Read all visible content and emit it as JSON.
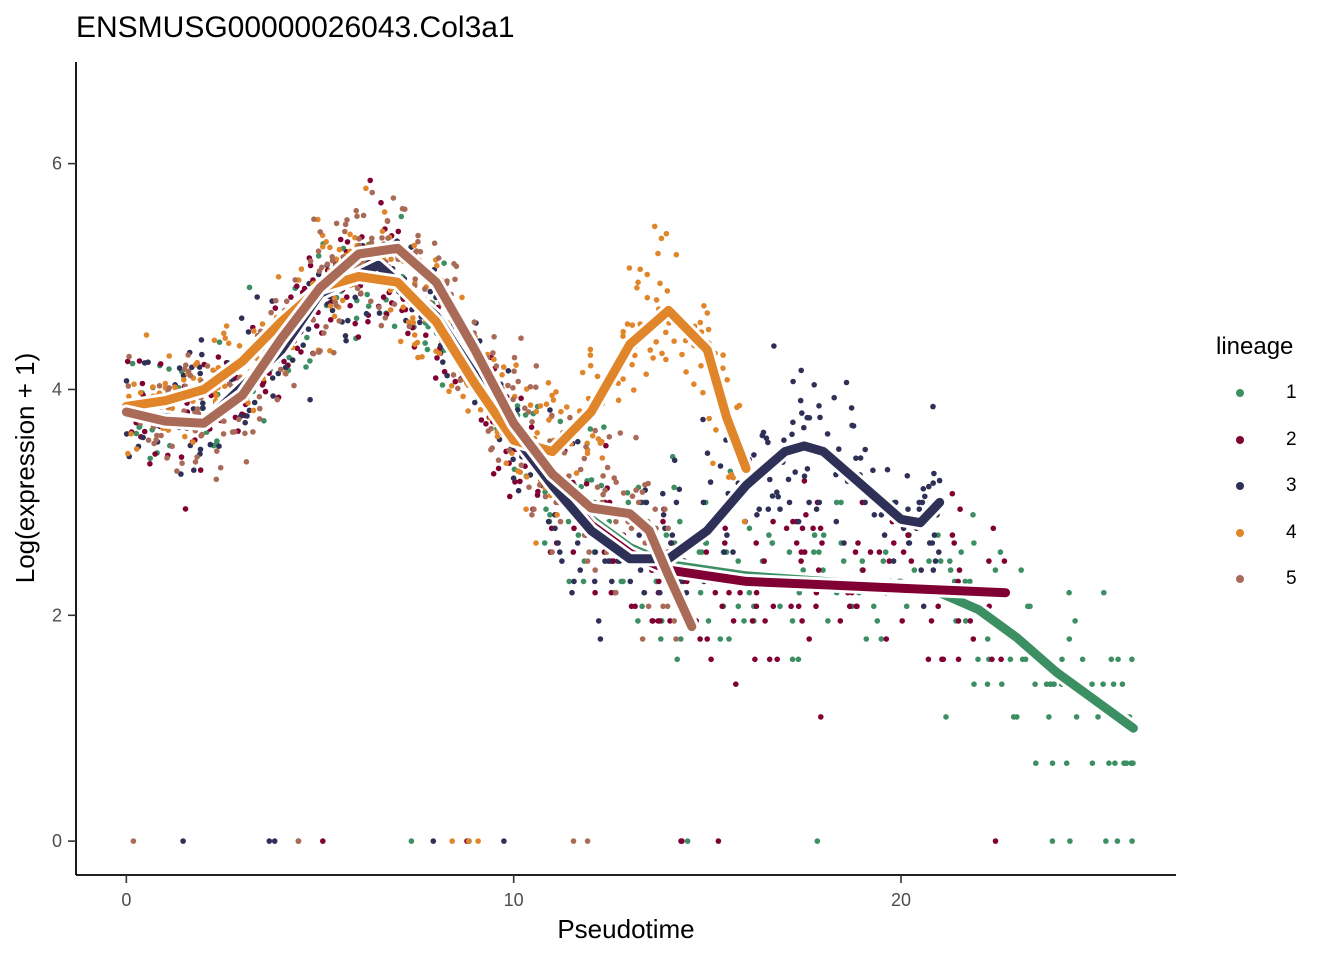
{
  "chart_data": {
    "type": "scatter",
    "title": "ENSMUSG00000026043.Col3a1",
    "xlabel": "Pseudotime",
    "ylabel": "Log(expression + 1)",
    "xlim": [
      -1.3,
      27.1
    ],
    "ylim": [
      -0.3,
      6.9
    ],
    "x_ticks": [
      0,
      10,
      20
    ],
    "x_tick_labels": [
      "0",
      "10",
      "20"
    ],
    "y_ticks": [
      0,
      2,
      4,
      6
    ],
    "y_tick_labels": [
      "0",
      "2",
      "4",
      "6"
    ],
    "grid": false,
    "legend": {
      "title": "lineage",
      "position": "right"
    },
    "series": [
      {
        "name": "1",
        "color": "#3b8f62",
        "x_range": [
          0,
          26
        ],
        "smooth_curve": [
          [
            0,
            3.8
          ],
          [
            2,
            3.7
          ],
          [
            4,
            4.35
          ],
          [
            5,
            4.85
          ],
          [
            6.5,
            5.1
          ],
          [
            8,
            4.65
          ],
          [
            10,
            3.6
          ],
          [
            11,
            3.2
          ],
          [
            12,
            2.85
          ],
          [
            13,
            2.6
          ],
          [
            14,
            2.45
          ],
          [
            16,
            2.35
          ],
          [
            18,
            2.3
          ],
          [
            20,
            2.25
          ],
          [
            21,
            2.2
          ],
          [
            22,
            2.05
          ],
          [
            23,
            1.8
          ],
          [
            24,
            1.5
          ],
          [
            25,
            1.25
          ],
          [
            26,
            1.0
          ]
        ]
      },
      {
        "name": "2",
        "color": "#800034",
        "x_range": [
          0,
          22.7
        ],
        "smooth_curve": [
          [
            0,
            3.8
          ],
          [
            2,
            3.7
          ],
          [
            4,
            4.35
          ],
          [
            5,
            4.85
          ],
          [
            6.5,
            5.1
          ],
          [
            8,
            4.65
          ],
          [
            10,
            3.6
          ],
          [
            11,
            3.2
          ],
          [
            12,
            2.8
          ],
          [
            13,
            2.55
          ],
          [
            14,
            2.4
          ],
          [
            16,
            2.3
          ],
          [
            18,
            2.27
          ],
          [
            20,
            2.24
          ],
          [
            22.7,
            2.2
          ]
        ]
      },
      {
        "name": "3",
        "color": "#2f3057",
        "x_range": [
          0,
          21
        ],
        "smooth_curve": [
          [
            0,
            3.8
          ],
          [
            2,
            3.7
          ],
          [
            4,
            4.35
          ],
          [
            5,
            4.85
          ],
          [
            6.5,
            5.1
          ],
          [
            8,
            4.65
          ],
          [
            10,
            3.6
          ],
          [
            11,
            3.15
          ],
          [
            12,
            2.75
          ],
          [
            13,
            2.5
          ],
          [
            14,
            2.5
          ],
          [
            15,
            2.75
          ],
          [
            16,
            3.15
          ],
          [
            17,
            3.45
          ],
          [
            17.5,
            3.5
          ],
          [
            18,
            3.45
          ],
          [
            19,
            3.15
          ],
          [
            20,
            2.85
          ],
          [
            20.5,
            2.82
          ],
          [
            21,
            3.0
          ]
        ]
      },
      {
        "name": "4",
        "color": "#e0852a",
        "x_range": [
          0,
          16
        ],
        "smooth_curve": [
          [
            0,
            3.85
          ],
          [
            1,
            3.9
          ],
          [
            2,
            4.0
          ],
          [
            3,
            4.25
          ],
          [
            4,
            4.6
          ],
          [
            5,
            4.9
          ],
          [
            6,
            5.0
          ],
          [
            7,
            4.95
          ],
          [
            8,
            4.6
          ],
          [
            9,
            4.05
          ],
          [
            10,
            3.55
          ],
          [
            11,
            3.45
          ],
          [
            12,
            3.8
          ],
          [
            13,
            4.4
          ],
          [
            14,
            4.7
          ],
          [
            15,
            4.35
          ],
          [
            15.5,
            3.75
          ],
          [
            16,
            3.3
          ]
        ]
      },
      {
        "name": "5",
        "color": "#a96b58",
        "x_range": [
          0,
          14.6
        ],
        "smooth_curve": [
          [
            0,
            3.8
          ],
          [
            1,
            3.72
          ],
          [
            2,
            3.7
          ],
          [
            3,
            3.95
          ],
          [
            4,
            4.45
          ],
          [
            5,
            4.9
          ],
          [
            6,
            5.2
          ],
          [
            7,
            5.25
          ],
          [
            8,
            4.95
          ],
          [
            9,
            4.35
          ],
          [
            10,
            3.7
          ],
          [
            11,
            3.25
          ],
          [
            12,
            2.95
          ],
          [
            13,
            2.9
          ],
          [
            13.5,
            2.75
          ],
          [
            14,
            2.35
          ],
          [
            14.6,
            1.9
          ]
        ]
      }
    ]
  }
}
